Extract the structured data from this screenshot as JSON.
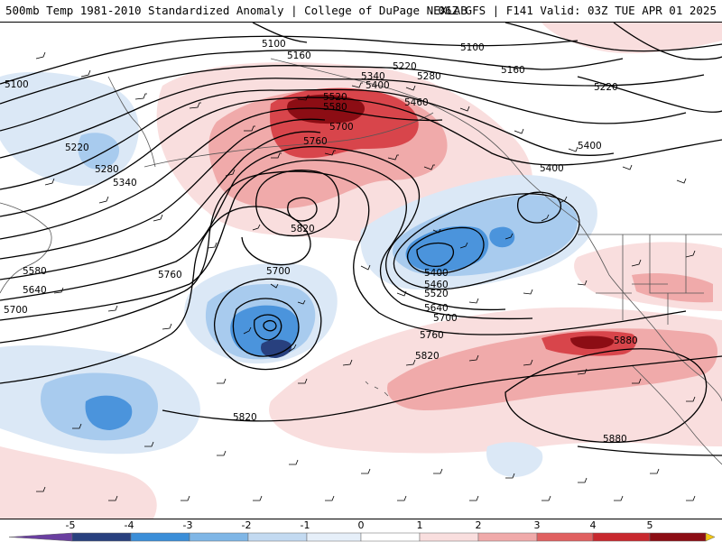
{
  "header": {
    "title": "500mb Temp 1981-2010 Standardized Anomaly | College of DuPage NEXLAB",
    "run_info": "06Z GFS | F141 Valid: 03Z TUE APR 01 2025"
  },
  "contour_labels": [
    {
      "id": "c5100a",
      "text": "5100"
    },
    {
      "id": "c5100b",
      "text": "5100"
    },
    {
      "id": "c5100c",
      "text": "5100"
    },
    {
      "id": "c5160a",
      "text": "5160"
    },
    {
      "id": "c5160b",
      "text": "5160"
    },
    {
      "id": "c5220a",
      "text": "5220"
    },
    {
      "id": "c5220b",
      "text": "5220"
    },
    {
      "id": "c5220c",
      "text": "5220"
    },
    {
      "id": "c5280a",
      "text": "5280"
    },
    {
      "id": "c5280b",
      "text": "5280"
    },
    {
      "id": "c5340a",
      "text": "5340"
    },
    {
      "id": "c5340b",
      "text": "5340"
    },
    {
      "id": "c5400a",
      "text": "5400"
    },
    {
      "id": "c5400b",
      "text": "5400"
    },
    {
      "id": "c5400c",
      "text": "5400"
    },
    {
      "id": "c5400d",
      "text": "5400"
    },
    {
      "id": "c5460a",
      "text": "5460"
    },
    {
      "id": "c5460b",
      "text": "5460"
    },
    {
      "id": "c5520a",
      "text": "5520"
    },
    {
      "id": "c5520b",
      "text": "5520"
    },
    {
      "id": "c5580a",
      "text": "5580"
    },
    {
      "id": "c5580b",
      "text": "5580"
    },
    {
      "id": "c5640a",
      "text": "5640"
    },
    {
      "id": "c5640b",
      "text": "5640"
    },
    {
      "id": "c5700a",
      "text": "5700"
    },
    {
      "id": "c5700b",
      "text": "5700"
    },
    {
      "id": "c5700c",
      "text": "5700"
    },
    {
      "id": "c5700d",
      "text": "5700"
    },
    {
      "id": "c5760a",
      "text": "5760"
    },
    {
      "id": "c5760b",
      "text": "5760"
    },
    {
      "id": "c5760c",
      "text": "5760"
    },
    {
      "id": "c5820a",
      "text": "5820"
    },
    {
      "id": "c5820b",
      "text": "5820"
    },
    {
      "id": "c5820c",
      "text": "5820"
    },
    {
      "id": "c5880a",
      "text": "5880"
    },
    {
      "id": "c5880b",
      "text": "5880"
    }
  ],
  "colorbar": {
    "ticks": [
      "-5",
      "-4",
      "-3",
      "-2",
      "-1",
      "0",
      "1",
      "2",
      "3",
      "4",
      "5"
    ],
    "colors": [
      "#6a3fa0",
      "#28407e",
      "#3b8ed8",
      "#7fb6e6",
      "#c3daf1",
      "#e6eff9",
      "#ffffff",
      "#f9dede",
      "#f0aaaa",
      "#e06060",
      "#c8282e",
      "#8c0d14",
      "#f2c511"
    ]
  },
  "anomaly_colors": {
    "strong_positive": "#8c0d14",
    "positive": "#d8454b",
    "weak_positive": "#f0aaaa",
    "slight_positive": "#f9dede",
    "slight_negative": "#dbe8f6",
    "weak_negative": "#a8cbee",
    "negative": "#4b94dc",
    "strong_negative": "#28407e"
  }
}
